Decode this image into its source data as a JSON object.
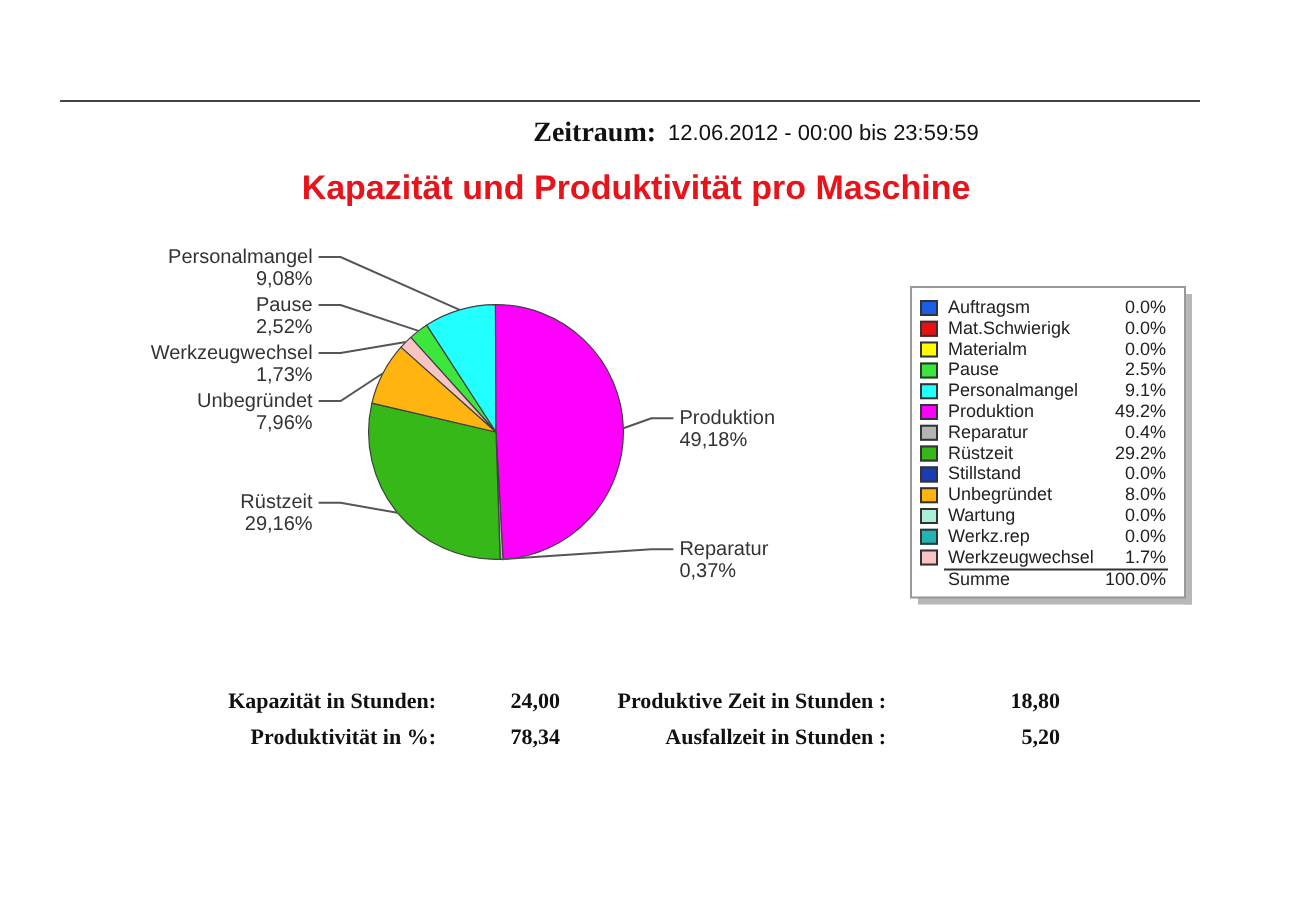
{
  "chart_data": {
    "type": "pie",
    "subtitle": "Zeitraum: 12.06.2012 - 00:00 bis 23:59:59",
    "title": "Kapazität und Produktivität pro Maschine",
    "categories": [
      "Auftragsm",
      "Mat.Schwierigk",
      "Materialm",
      "Pause",
      "Personalmangel",
      "Produktion",
      "Reparatur",
      "Rüstzeit",
      "Stillstand",
      "Unbegründet",
      "Wartung",
      "Werkz.rep",
      "Werkzeugwechsel"
    ],
    "values": [
      0,
      0,
      0,
      2.52,
      9.08,
      49.18,
      0.37,
      29.16,
      0,
      7.96,
      0,
      0,
      1.73
    ],
    "colors": [
      "#1a5ee8",
      "#e81010",
      "#ffff00",
      "#3ce63c",
      "#22ffff",
      "#ff00ff",
      "#b4b4b4",
      "#35b818",
      "#1a3cb4",
      "#ffb410",
      "#aaf0d8",
      "#20b4b4",
      "#f8c4c4"
    ],
    "value_labels": [
      null,
      null,
      null,
      "2,52%",
      "9,08%",
      "49,18%",
      "0,37%",
      "29,16%",
      null,
      "7,96%",
      null,
      null,
      "1,73%"
    ],
    "legend": "right",
    "annotations": [
      "0.0%",
      "0.0%",
      "0.0%",
      "2.5%",
      "9.1%",
      "49.2%",
      "0.4%",
      "29.2%",
      "0.0%",
      "8.0%",
      "0.0%",
      "0.0%",
      "1.7%",
      "Summe",
      "100.0%",
      "Kapazität in Stunden:",
      "24,00",
      "Produktive Zeit in Stunden :",
      "18,80",
      "Produktivität in %:",
      "78,34",
      "Ausfallzeit in Stunden :",
      "5,20"
    ]
  }
}
